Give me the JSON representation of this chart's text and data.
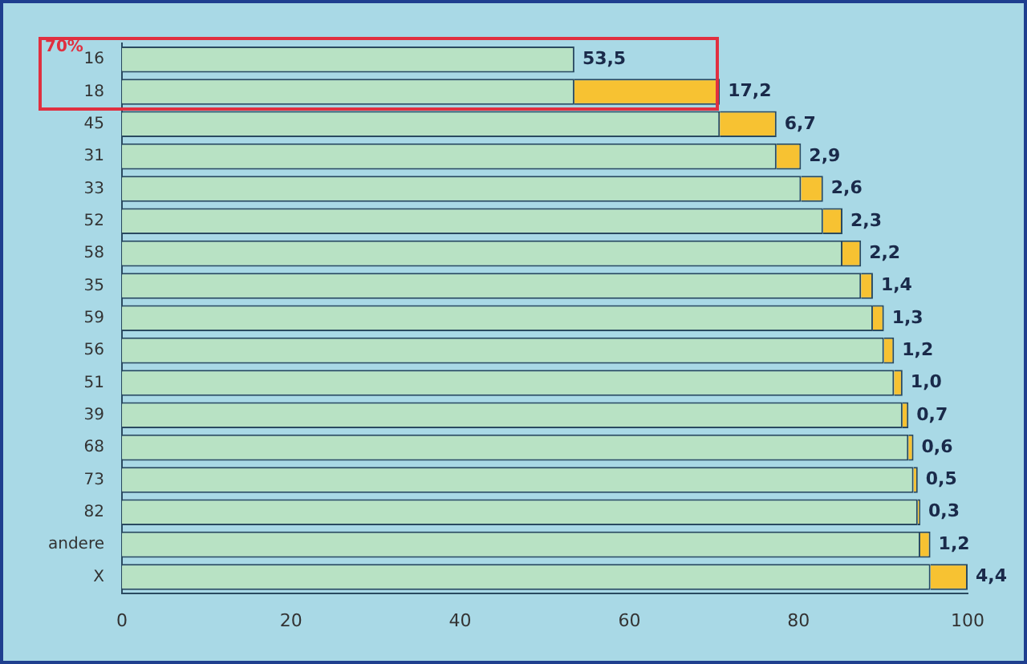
{
  "chart_data": {
    "type": "bar",
    "orientation": "horizontal",
    "stacked": true,
    "categories": [
      "16",
      "18",
      "45",
      "31",
      "33",
      "52",
      "58",
      "35",
      "59",
      "56",
      "51",
      "39",
      "68",
      "73",
      "82",
      "andere",
      "X"
    ],
    "series": [
      {
        "color": "#b8e2c4",
        "values": [
          0,
          53.5,
          70.7,
          77.4,
          80.3,
          82.9,
          85.2,
          87.4,
          88.8,
          90.1,
          91.3,
          92.3,
          93.0,
          93.6,
          94.1,
          94.4,
          95.6
        ]
      },
      {
        "colors": [
          "#b8e2c4",
          "#f7c232",
          "#f7c232",
          "#f7c232",
          "#f7c232",
          "#f7c232",
          "#f7c232",
          "#f7c232",
          "#f7c232",
          "#f7c232",
          "#f7c232",
          "#f7c232",
          "#f7c232",
          "#f7c232",
          "#f7c232",
          "#f7c232",
          "#f7c232"
        ],
        "values": [
          53.5,
          17.2,
          6.7,
          2.9,
          2.6,
          2.3,
          2.2,
          1.4,
          1.3,
          1.2,
          1.0,
          0.7,
          0.6,
          0.5,
          0.3,
          1.2,
          4.4
        ],
        "value_labels": [
          "53,5",
          "17,2",
          "6,7",
          "2,9",
          "2,6",
          "2,3",
          "2,2",
          "1,4",
          "1,3",
          "1,2",
          "1,0",
          "0,7",
          "0,6",
          "0,5",
          "0,3",
          "1,2",
          "4,4"
        ]
      }
    ],
    "xlim": [
      0,
      100
    ],
    "xticks": [
      0,
      20,
      40,
      60,
      80,
      100
    ],
    "grid": false,
    "legend": false,
    "annotations": [
      "70%"
    ]
  }
}
